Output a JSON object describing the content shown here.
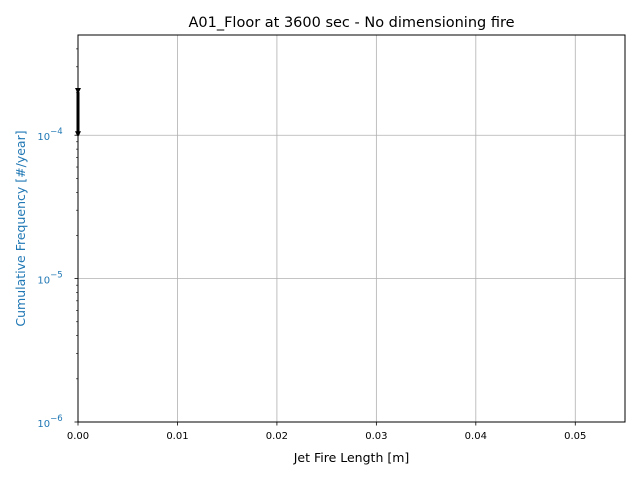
{
  "chart_data": {
    "type": "line",
    "title": "A01_Floor at 3600 sec - No dimensioning fire",
    "xlabel": "Jet Fire Length [m]",
    "ylabel": "Cumulative Frequency [#/year]",
    "xlim": [
      0,
      0.055
    ],
    "ylim": [
      1e-06,
      0.0005
    ],
    "yscale": "log",
    "grid": true,
    "x_ticks": [
      {
        "value": 0.0,
        "label": "0.00"
      },
      {
        "value": 0.01,
        "label": "0.01"
      },
      {
        "value": 0.02,
        "label": "0.02"
      },
      {
        "value": 0.03,
        "label": "0.03"
      },
      {
        "value": 0.04,
        "label": "0.04"
      },
      {
        "value": 0.05,
        "label": "0.05"
      }
    ],
    "y_ticks": [
      {
        "value": 1e-06,
        "base": "10",
        "exp": "−6"
      },
      {
        "value": 1e-05,
        "base": "10",
        "exp": "−5"
      },
      {
        "value": 0.0001,
        "base": "10",
        "exp": "−4"
      }
    ],
    "ylabel_color": "#1f77b4",
    "series": [
      {
        "color": "#000000",
        "x": [
          0.0,
          0.0
        ],
        "y": [
          0.0002,
          0.0001
        ],
        "marker": "triangle-down"
      }
    ]
  }
}
